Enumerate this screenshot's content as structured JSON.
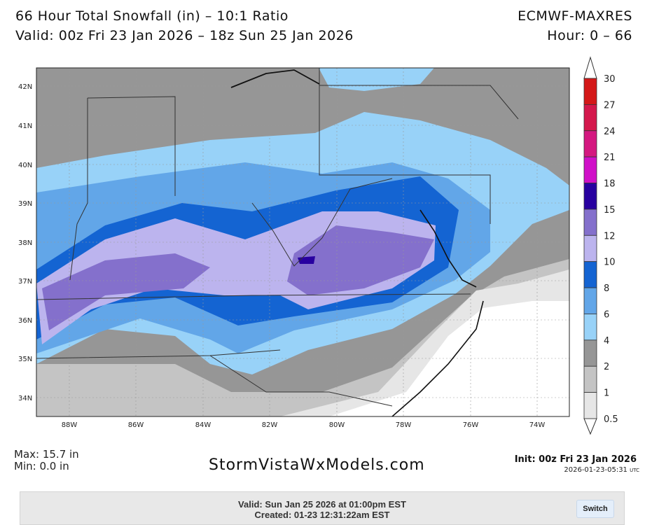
{
  "header": {
    "title": "66 Hour Total Snowfall (in) – 10:1 Ratio",
    "valid": "Valid: 00z Fri 23 Jan 2026 – 18z Sun 25 Jan 2026",
    "model": "ECMWF-MAXRES",
    "hours": "Hour: 0 – 66"
  },
  "map": {
    "lat_labels": [
      "42N",
      "41N",
      "40N",
      "39N",
      "38N",
      "37N",
      "36N",
      "35N",
      "34N"
    ],
    "lon_labels": [
      "88W",
      "86W",
      "84W",
      "82W",
      "80W",
      "78W",
      "76W",
      "74W"
    ],
    "peak_area": "15-18 in over southwestern Virginia"
  },
  "legend": {
    "labels": [
      "30",
      "27",
      "24",
      "21",
      "18",
      "15",
      "12",
      "10",
      "8",
      "6",
      "4",
      "2",
      "1",
      "0.5"
    ],
    "colors": [
      "#d41818",
      "#d4184c",
      "#d41880",
      "#d010c8",
      "#2800a0",
      "#8470cc",
      "#bcb4ee",
      "#1464d2",
      "#62a6e8",
      "#98d2f8",
      "#969696",
      "#c4c4c4",
      "#e6e6e6"
    ]
  },
  "stats": {
    "max": "Max: 15.7 in",
    "min": "Min: 0.0 in"
  },
  "brand": "StormVistaWxModels.com",
  "init": "Init: 00z Fri 23 Jan 2026",
  "generated": "2026-01-23-05:31",
  "generated_tz": "UTC",
  "panel": {
    "valid": "Valid: Sun Jan 25 2026 at 01:00pm EST",
    "created": "Created: 01-23 12:31:22am EST",
    "switch_label": "Switch"
  }
}
